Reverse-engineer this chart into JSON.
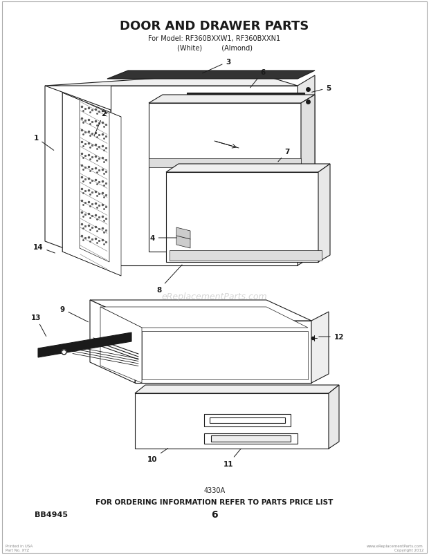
{
  "title": "DOOR AND DRAWER PARTS",
  "subtitle": "For Model: RF360BXXW1, RF360BXXN1",
  "subtitle2": "(White)         (Almond)",
  "diagram_code": "4330A",
  "ordering_text": "FOR ORDERING INFORMATION REFER TO PARTS PRICE LIST",
  "page_num": "6",
  "bottom_left": "BB4945",
  "watermark": "eReplacementParts.com",
  "bg_color": "#ffffff",
  "line_color": "#1a1a1a",
  "watermark_color": "#bbbbbb",
  "lw": 0.8,
  "lw_thick": 1.5,
  "lw_thin": 0.5
}
